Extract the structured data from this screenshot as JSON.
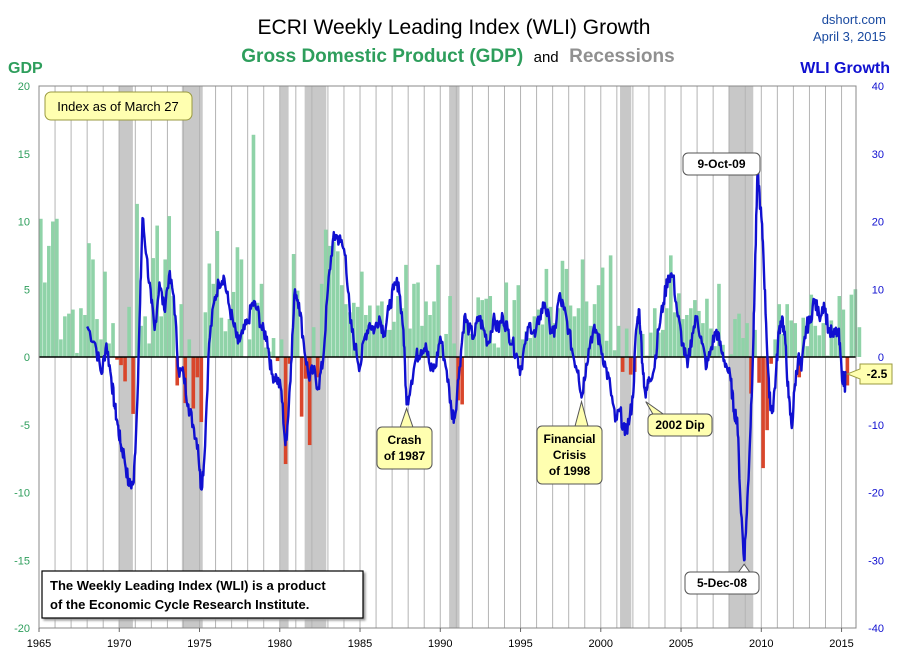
{
  "header": {
    "title": "ECRI Weekly Leading Index (WLI) Growth",
    "subtitle_gdp": "Gross Domestic Product (GDP)",
    "subtitle_and": "and",
    "subtitle_rec": "Recessions",
    "source": "dshort.com",
    "date": "April 3, 2015",
    "left_axis_title": "GDP",
    "right_axis_title": "WLI Growth"
  },
  "notes": {
    "index_as_of": "Index as of March 27",
    "footnote_line1": "The Weekly Leading Index (WLI) is a product",
    "footnote_line2": "of the Economic Cycle Research Institute.",
    "current_value": "-2.5"
  },
  "annotations": [
    {
      "id": "peak",
      "lines": [
        "9-Oct-09"
      ],
      "x": 2009.77,
      "y": 27.5
    },
    {
      "id": "trough",
      "lines": [
        "5-Dec-08"
      ],
      "x": 2008.93,
      "y": -30
    },
    {
      "id": "crash",
      "lines": [
        "Crash",
        "of 1987"
      ],
      "x": 1987.9,
      "y": -7
    },
    {
      "id": "fin",
      "lines": [
        "Financial",
        "Crisis",
        "of 1998"
      ],
      "x": 1998.8,
      "y": -6
    },
    {
      "id": "dip",
      "lines": [
        "2002 Dip"
      ],
      "x": 2002.8,
      "y": -6
    }
  ],
  "colors": {
    "gdp_positive": "#8fd3a8",
    "gdp_negative": "#d9462b",
    "wli_line": "#1010d0",
    "recession": "#c8c8c8",
    "title": "#000000",
    "gdp_text": "#2e9e5c",
    "rec_text": "#909090",
    "wli_text": "#1010d0",
    "note_fill": "#ffffb0"
  },
  "chart_data": {
    "type": "bar+line",
    "x_range": [
      1965,
      2015.9
    ],
    "x_ticks": [
      "1965",
      "1970",
      "1975",
      "1980",
      "1985",
      "1990",
      "1995",
      "2000",
      "2005",
      "2010",
      "2015"
    ],
    "left_axis": {
      "label": "GDP",
      "range": [
        -20,
        20
      ],
      "ticks": [
        20,
        15,
        10,
        5,
        0,
        -5,
        -10,
        -15,
        -20
      ]
    },
    "right_axis": {
      "label": "WLI Growth",
      "range": [
        -40,
        40
      ],
      "ticks": [
        40,
        30,
        20,
        10,
        0,
        -10,
        -20,
        -30,
        -40
      ]
    },
    "recessions": [
      [
        1969.95,
        1970.85
      ],
      [
        1973.9,
        1975.2
      ],
      [
        1980.0,
        1980.55
      ],
      [
        1981.55,
        1982.9
      ],
      [
        1990.55,
        1991.2
      ],
      [
        2001.2,
        2001.9
      ],
      [
        2007.95,
        2009.5
      ]
    ],
    "gdp_quarterly": {
      "start_year": 1965.0,
      "values": [
        10.2,
        5.5,
        8.2,
        10.0,
        10.2,
        1.3,
        3.0,
        3.2,
        3.5,
        0.3,
        3.6,
        3.1,
        8.4,
        7.2,
        2.8,
        1.3,
        6.3,
        1.0,
        2.5,
        -0.2,
        -0.6,
        -1.8,
        3.7,
        -4.2,
        11.3,
        2.3,
        3.0,
        1.0,
        7.3,
        9.7,
        3.0,
        7.2,
        10.4,
        4.5,
        -2.1,
        3.9,
        -3.4,
        1.3,
        -3.8,
        -1.5,
        -4.8,
        3.3,
        6.9,
        5.4,
        9.3,
        2.9,
        1.9,
        2.8,
        4.8,
        8.1,
        7.2,
        0.0,
        1.3,
        16.4,
        4.0,
        5.4,
        0.7,
        0.4,
        1.4,
        -0.3,
        1.3,
        -7.9,
        -0.5,
        7.6,
        4.9,
        -4.4,
        -1.6,
        -6.5,
        2.2,
        -1.5,
        5.4,
        9.4,
        8.2,
        8.5,
        7.8,
        5.3,
        3.9,
        3.3,
        4.0,
        3.7,
        6.3,
        3.1,
        3.8,
        1.9,
        3.8,
        4.1,
        2.0,
        2.0,
        2.6,
        4.5,
        3.6,
        6.8,
        2.1,
        5.4,
        5.5,
        2.3,
        4.1,
        3.1,
        4.1,
        6.8,
        0.9,
        1.7,
        4.5,
        1.0,
        -3.2,
        -3.5,
        2.7,
        1.7,
        1.7,
        4.4,
        4.2,
        4.3,
        4.5,
        1.0,
        0.7,
        2.5,
        5.5,
        1.3,
        4.2,
        5.3,
        1.3,
        1.9,
        1.4,
        3.0,
        3.5,
        2.4,
        6.5,
        3.7,
        2.5,
        3.6,
        7.1,
        6.5,
        3.8,
        3.0,
        3.6,
        7.2,
        4.1,
        2.3,
        3.9,
        5.3,
        6.6,
        1.2,
        7.5,
        0.5,
        2.3,
        -1.1,
        2.1,
        -1.3,
        -1.1,
        2.7,
        1.7,
        0.1,
        1.8,
        3.6,
        1.8,
        2.0,
        3.6,
        7.5,
        3.3,
        4.7,
        2.8,
        3.1,
        3.6,
        4.2,
        3.4,
        2.5,
        4.3,
        2.1,
        0.8,
        5.4,
        0.9,
        0.0,
        0.2,
        2.8,
        3.2,
        1.4,
        2.5,
        -2.7,
        2.0,
        -1.9,
        -8.2,
        -5.4,
        -0.5,
        1.3,
        3.9,
        1.7,
        3.9,
        2.7,
        2.5,
        -1.5,
        2.9,
        0.8,
        4.6,
        2.3,
        1.6,
        2.5,
        0.1,
        2.7,
        1.8,
        4.5,
        3.5,
        -2.1,
        4.6,
        5.0,
        2.2
      ]
    },
    "wli_points": [
      [
        1968.0,
        4.5
      ],
      [
        1968.5,
        2.0
      ],
      [
        1968.9,
        -2.5
      ],
      [
        1969.2,
        2.0
      ],
      [
        1969.5,
        -3.0
      ],
      [
        1969.7,
        -7.0
      ],
      [
        1969.9,
        -10.0
      ],
      [
        1970.1,
        -13.0
      ],
      [
        1970.3,
        -14.5
      ],
      [
        1970.6,
        -19.0
      ],
      [
        1970.9,
        -18.5
      ],
      [
        1971.1,
        -8.0
      ],
      [
        1971.3,
        8.0
      ],
      [
        1971.45,
        20.5
      ],
      [
        1971.7,
        15.0
      ],
      [
        1972.0,
        8.0
      ],
      [
        1972.2,
        4.0
      ],
      [
        1972.5,
        11.0
      ],
      [
        1972.8,
        7.0
      ],
      [
        1973.1,
        12.0
      ],
      [
        1973.4,
        9.0
      ],
      [
        1973.7,
        -2.0
      ],
      [
        1974.0,
        -2.5
      ],
      [
        1974.3,
        -7.0
      ],
      [
        1974.6,
        -10.0
      ],
      [
        1974.9,
        -13.0
      ],
      [
        1975.1,
        -19.5
      ],
      [
        1975.3,
        -15.0
      ],
      [
        1975.6,
        2.0
      ],
      [
        1975.9,
        8.0
      ],
      [
        1976.2,
        11.0
      ],
      [
        1976.5,
        12.0
      ],
      [
        1976.8,
        8.0
      ],
      [
        1977.1,
        5.0
      ],
      [
        1977.4,
        2.0
      ],
      [
        1977.7,
        3.5
      ],
      [
        1978.0,
        5.0
      ],
      [
        1978.3,
        8.0
      ],
      [
        1978.6,
        7.0
      ],
      [
        1978.9,
        4.0
      ],
      [
        1979.2,
        3.0
      ],
      [
        1979.5,
        -2.5
      ],
      [
        1979.8,
        -3.0
      ],
      [
        1980.1,
        -5.0
      ],
      [
        1980.35,
        -13.0
      ],
      [
        1980.5,
        -9.5
      ],
      [
        1980.7,
        -1.0
      ],
      [
        1980.95,
        10.0
      ],
      [
        1981.2,
        8.0
      ],
      [
        1981.5,
        2.0
      ],
      [
        1981.8,
        -3.0
      ],
      [
        1982.1,
        -2.0
      ],
      [
        1982.4,
        -4.5
      ],
      [
        1982.7,
        -0.5
      ],
      [
        1983.0,
        10.0
      ],
      [
        1983.3,
        17.0
      ],
      [
        1983.5,
        18.0
      ],
      [
        1983.8,
        17.0
      ],
      [
        1984.1,
        15.0
      ],
      [
        1984.4,
        5.0
      ],
      [
        1984.7,
        1.5
      ],
      [
        1985.0,
        -1.5
      ],
      [
        1985.3,
        3.0
      ],
      [
        1985.6,
        5.0
      ],
      [
        1985.9,
        4.0
      ],
      [
        1986.2,
        6.0
      ],
      [
        1986.5,
        3.5
      ],
      [
        1986.8,
        7.0
      ],
      [
        1987.1,
        10.0
      ],
      [
        1987.4,
        11.0
      ],
      [
        1987.7,
        4.0
      ],
      [
        1987.9,
        -7.0
      ],
      [
        1988.2,
        -3.5
      ],
      [
        1988.5,
        0.0
      ],
      [
        1988.8,
        1.0
      ],
      [
        1989.1,
        2.0
      ],
      [
        1989.4,
        -2.0
      ],
      [
        1989.7,
        -1.5
      ],
      [
        1990.0,
        3.0
      ],
      [
        1990.4,
        -2.0
      ],
      [
        1990.7,
        -8.0
      ],
      [
        1990.9,
        -9.0
      ],
      [
        1991.2,
        -1.5
      ],
      [
        1991.5,
        6.0
      ],
      [
        1991.8,
        4.0
      ],
      [
        1992.1,
        3.0
      ],
      [
        1992.4,
        6.0
      ],
      [
        1992.7,
        4.0
      ],
      [
        1993.0,
        2.0
      ],
      [
        1993.3,
        5.5
      ],
      [
        1993.6,
        4.0
      ],
      [
        1993.9,
        6.0
      ],
      [
        1994.2,
        4.0
      ],
      [
        1994.5,
        2.0
      ],
      [
        1994.8,
        0.0
      ],
      [
        1995.0,
        -2.0
      ],
      [
        1995.3,
        2.0
      ],
      [
        1995.6,
        5.0
      ],
      [
        1995.9,
        3.0
      ],
      [
        1996.2,
        6.0
      ],
      [
        1996.5,
        8.0
      ],
      [
        1996.8,
        5.0
      ],
      [
        1997.1,
        3.0
      ],
      [
        1997.4,
        9.0
      ],
      [
        1997.7,
        7.0
      ],
      [
        1998.0,
        4.0
      ],
      [
        1998.3,
        0.0
      ],
      [
        1998.6,
        -2.0
      ],
      [
        1998.8,
        -6.0
      ],
      [
        1999.1,
        -1.0
      ],
      [
        1999.4,
        3.0
      ],
      [
        1999.7,
        4.0
      ],
      [
        2000.0,
        1.5
      ],
      [
        2000.3,
        -1.5
      ],
      [
        2000.6,
        -4.5
      ],
      [
        2000.9,
        -9.5
      ],
      [
        2001.2,
        -8.0
      ],
      [
        2001.5,
        -11.5
      ],
      [
        2001.8,
        -9.0
      ],
      [
        2002.0,
        -6.0
      ],
      [
        2002.2,
        4.0
      ],
      [
        2002.4,
        7.0
      ],
      [
        2002.6,
        -1.0
      ],
      [
        2002.8,
        -6.0
      ],
      [
        2003.0,
        -3.0
      ],
      [
        2003.3,
        -2.0
      ],
      [
        2003.6,
        4.0
      ],
      [
        2003.9,
        8.0
      ],
      [
        2004.2,
        12.0
      ],
      [
        2004.5,
        12.0
      ],
      [
        2004.8,
        6.0
      ],
      [
        2005.1,
        2.0
      ],
      [
        2005.4,
        -1.5
      ],
      [
        2005.7,
        3.5
      ],
      [
        2006.0,
        6.0
      ],
      [
        2006.3,
        2.0
      ],
      [
        2006.6,
        -1.5
      ],
      [
        2006.9,
        1.5
      ],
      [
        2007.2,
        4.0
      ],
      [
        2007.5,
        1.0
      ],
      [
        2007.8,
        -1.0
      ],
      [
        2008.1,
        -3.5
      ],
      [
        2008.3,
        -8.0
      ],
      [
        2008.5,
        -9.0
      ],
      [
        2008.7,
        -21.0
      ],
      [
        2008.93,
        -30.0
      ],
      [
        2009.1,
        -23.0
      ],
      [
        2009.3,
        -12.0
      ],
      [
        2009.5,
        2.0
      ],
      [
        2009.6,
        12.0
      ],
      [
        2009.77,
        27.5
      ],
      [
        2009.95,
        22.0
      ],
      [
        2010.1,
        17.0
      ],
      [
        2010.3,
        5.0
      ],
      [
        2010.5,
        -6.0
      ],
      [
        2010.7,
        -8.0
      ],
      [
        2010.9,
        -3.0
      ],
      [
        2011.1,
        4.0
      ],
      [
        2011.3,
        6.0
      ],
      [
        2011.5,
        2.0
      ],
      [
        2011.7,
        -6.0
      ],
      [
        2011.9,
        -10.5
      ],
      [
        2012.1,
        -4.0
      ],
      [
        2012.3,
        0.0
      ],
      [
        2012.5,
        -2.0
      ],
      [
        2012.8,
        4.5
      ],
      [
        2013.0,
        5.0
      ],
      [
        2013.3,
        8.5
      ],
      [
        2013.6,
        6.0
      ],
      [
        2013.9,
        8.0
      ],
      [
        2014.2,
        4.0
      ],
      [
        2014.5,
        3.0
      ],
      [
        2014.8,
        4.0
      ],
      [
        2015.0,
        -2.0
      ],
      [
        2015.2,
        -4.5
      ],
      [
        2015.24,
        -2.5
      ]
    ]
  }
}
